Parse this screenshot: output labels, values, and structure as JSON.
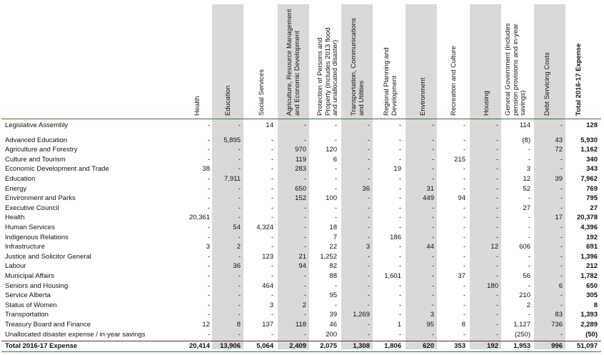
{
  "columns": [
    {
      "key": "health",
      "label": "Health",
      "lines": [
        "Health"
      ]
    },
    {
      "key": "education",
      "label": "Education",
      "lines": [
        "Education"
      ]
    },
    {
      "key": "social",
      "label": "Social Services",
      "lines": [
        "Social Services"
      ]
    },
    {
      "key": "agri",
      "label": "Agriculture, Resource Management and Economic Development",
      "lines": [
        "Agriculture, Resource Management",
        "and Economic Development"
      ]
    },
    {
      "key": "protection",
      "label": "Protection of Persons and Property (includes 2013 flood and unallocated disaster)",
      "lines": [
        "Protection of Persons and",
        "Property (includes 2013 flood",
        "and unallocated disaster)"
      ]
    },
    {
      "key": "transport",
      "label": "Transportation, Communications and Utilities",
      "lines": [
        "Transportation, Communications",
        "and Utilities"
      ]
    },
    {
      "key": "regional",
      "label": "Regional Planning and Development",
      "lines": [
        "Regional Planning and",
        "Development"
      ]
    },
    {
      "key": "environment",
      "label": "Environment",
      "lines": [
        "Environment"
      ]
    },
    {
      "key": "recreation",
      "label": "Recreation and Culture",
      "lines": [
        "Recreation and Culture"
      ]
    },
    {
      "key": "housing",
      "label": "Housing",
      "lines": [
        "Housing"
      ]
    },
    {
      "key": "general",
      "label": "General Government (includes pension provisions and in-year savings)",
      "lines": [
        "General Government (includes",
        "pension provisions and in-year",
        "savings)"
      ]
    },
    {
      "key": "debt",
      "label": "Debt Servicing Costs",
      "lines": [
        "Debt Servicing Costs"
      ]
    },
    {
      "key": "total",
      "label": "Total 2016-17 Expense",
      "lines": [
        "Total 2016-17 Expense"
      ]
    }
  ],
  "rows": [
    {
      "name": "Legislative Assembly",
      "values": [
        "-",
        "-",
        "14",
        "-",
        "-",
        "-",
        "-",
        "-",
        "-",
        "-",
        "114",
        "-",
        "128"
      ]
    },
    {
      "name": "Advanced Education",
      "values": [
        "-",
        "5,895",
        "-",
        "-",
        "-",
        "-",
        "-",
        "-",
        "-",
        "-",
        "(8)",
        "43",
        "5,930"
      ]
    },
    {
      "name": "Agriculture and Forestry",
      "values": [
        "-",
        "-",
        "-",
        "970",
        "120",
        "-",
        "-",
        "-",
        "-",
        "-",
        "-",
        "72",
        "1,162"
      ]
    },
    {
      "name": "Culture and Tourism",
      "values": [
        "-",
        "-",
        "-",
        "119",
        "6",
        "-",
        "-",
        "-",
        "215",
        "-",
        "-",
        "-",
        "340"
      ]
    },
    {
      "name": "Economic Development and Trade",
      "values": [
        "38",
        "-",
        "-",
        "283",
        "-",
        "-",
        "19",
        "-",
        "-",
        "-",
        "3",
        "-",
        "343"
      ]
    },
    {
      "name": "Education",
      "values": [
        "-",
        "7,911",
        "-",
        "-",
        "-",
        "-",
        "-",
        "-",
        "-",
        "-",
        "12",
        "39",
        "7,962"
      ]
    },
    {
      "name": "Energy",
      "values": [
        "-",
        "-",
        "-",
        "650",
        "-",
        "36",
        "-",
        "31",
        "-",
        "-",
        "52",
        "-",
        "769"
      ]
    },
    {
      "name": "Environment and Parks",
      "values": [
        "-",
        "-",
        "-",
        "152",
        "100",
        "-",
        "-",
        "449",
        "94",
        "-",
        "-",
        "-",
        "795"
      ]
    },
    {
      "name": "Executive Council",
      "values": [
        "-",
        "-",
        "-",
        "-",
        "-",
        "-",
        "-",
        "-",
        "-",
        "-",
        "27",
        "-",
        "27"
      ]
    },
    {
      "name": "Health",
      "values": [
        "20,361",
        "-",
        "-",
        "-",
        "-",
        "-",
        "-",
        "-",
        "-",
        "-",
        "-",
        "17",
        "20,378"
      ]
    },
    {
      "name": "Human Services",
      "values": [
        "-",
        "54",
        "4,324",
        "-",
        "18",
        "-",
        "-",
        "-",
        "-",
        "-",
        "-",
        "-",
        "4,396"
      ]
    },
    {
      "name": "Indigenous Relations",
      "values": [
        "-",
        "-",
        "-",
        "-",
        "7",
        "-",
        "186",
        "-",
        "-",
        "-",
        "-",
        "-",
        "192"
      ]
    },
    {
      "name": "Infrastructure",
      "values": [
        "3",
        "2",
        "-",
        "-",
        "22",
        "3",
        "-",
        "44",
        "-",
        "12",
        "606",
        "-",
        "691"
      ]
    },
    {
      "name": "Justice and Solicitor General",
      "values": [
        "-",
        "-",
        "123",
        "21",
        "1,252",
        "-",
        "-",
        "-",
        "-",
        "-",
        "-",
        "-",
        "1,396"
      ]
    },
    {
      "name": "Labour",
      "values": [
        "-",
        "36",
        "-",
        "94",
        "82",
        "-",
        "-",
        "-",
        "-",
        "-",
        "-",
        "-",
        "212"
      ]
    },
    {
      "name": "Municipal Affairs",
      "values": [
        "-",
        "-",
        "-",
        "-",
        "88",
        "-",
        "1,601",
        "-",
        "37",
        "-",
        "56",
        "-",
        "1,782"
      ]
    },
    {
      "name": "Seniors and Housing",
      "values": [
        "-",
        "-",
        "464",
        "-",
        "-",
        "-",
        "-",
        "-",
        "-",
        "180",
        "-",
        "6",
        "650"
      ]
    },
    {
      "name": "Service Alberta",
      "values": [
        "-",
        "-",
        "-",
        "-",
        "95",
        "-",
        "-",
        "-",
        "-",
        "-",
        "210",
        "-",
        "305"
      ]
    },
    {
      "name": "Status of Women",
      "values": [
        "-",
        "-",
        "3",
        "2",
        "-",
        "-",
        "-",
        "-",
        "-",
        "-",
        "2",
        "-",
        "8"
      ]
    },
    {
      "name": "Transportation",
      "values": [
        "-",
        "-",
        "-",
        "-",
        "39",
        "1,269",
        "-",
        "3",
        "-",
        "-",
        "-",
        "83",
        "1,393"
      ]
    },
    {
      "name": "Treasury Board and Finance",
      "values": [
        "12",
        "8",
        "137",
        "118",
        "46",
        "-",
        "1",
        "95",
        "8",
        "-",
        "1,127",
        "736",
        "2,289"
      ]
    },
    {
      "name": "Unallocated disaster expense / in-year savings",
      "values": [
        "-",
        "-",
        "-",
        "-",
        "200",
        "-",
        "-",
        "-",
        "-",
        "-",
        "(250)",
        "-",
        "(50)"
      ]
    }
  ],
  "total_row": {
    "name": "Total 2016-17 Expense",
    "values": [
      "20,414",
      "13,906",
      "5,064",
      "2,409",
      "2,075",
      "1,308",
      "1,806",
      "620",
      "353",
      "192",
      "1,953",
      "996",
      "51,097"
    ]
  }
}
